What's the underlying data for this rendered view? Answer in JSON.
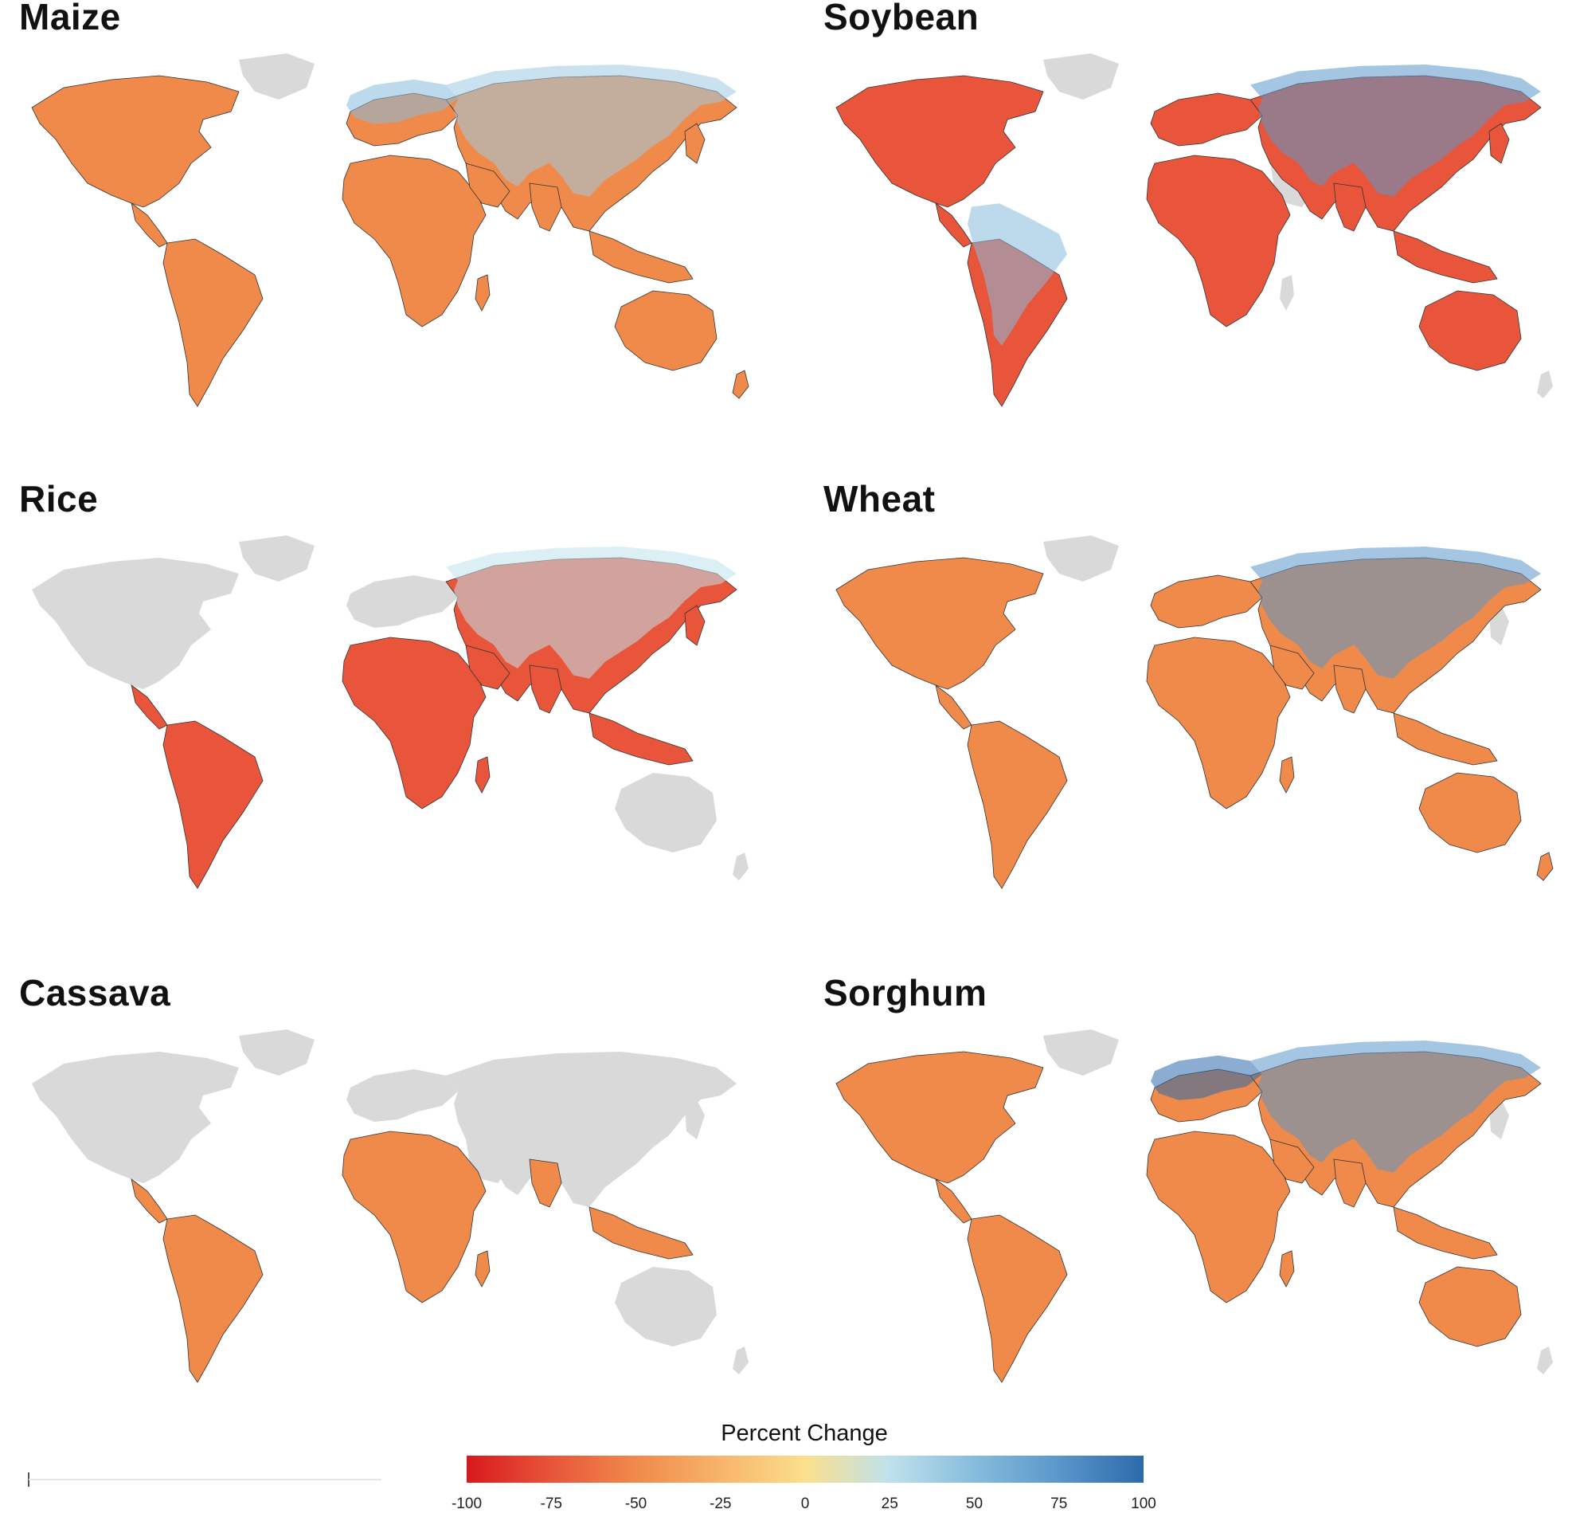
{
  "panels": [
    {
      "title": "Maize"
    },
    {
      "title": "Soybean"
    },
    {
      "title": "Rice"
    },
    {
      "title": "Wheat"
    },
    {
      "title": "Cassava"
    },
    {
      "title": "Sorghum"
    }
  ],
  "legend": {
    "title": "Percent Change",
    "ticks": [
      "-100",
      "-75",
      "-50",
      "-25",
      "0",
      "25",
      "50",
      "75",
      "100"
    ],
    "colors": [
      "#d7191c",
      "#e8553a",
      "#f08a4b",
      "#f7b46a",
      "#fbe08c",
      "#bfe1ec",
      "#86bcdc",
      "#5a97cb",
      "#2c6aab"
    ],
    "range": [
      -100,
      100
    ]
  },
  "colors": {
    "land_no_data": "#d9d9d9",
    "background": "#ffffff"
  }
}
